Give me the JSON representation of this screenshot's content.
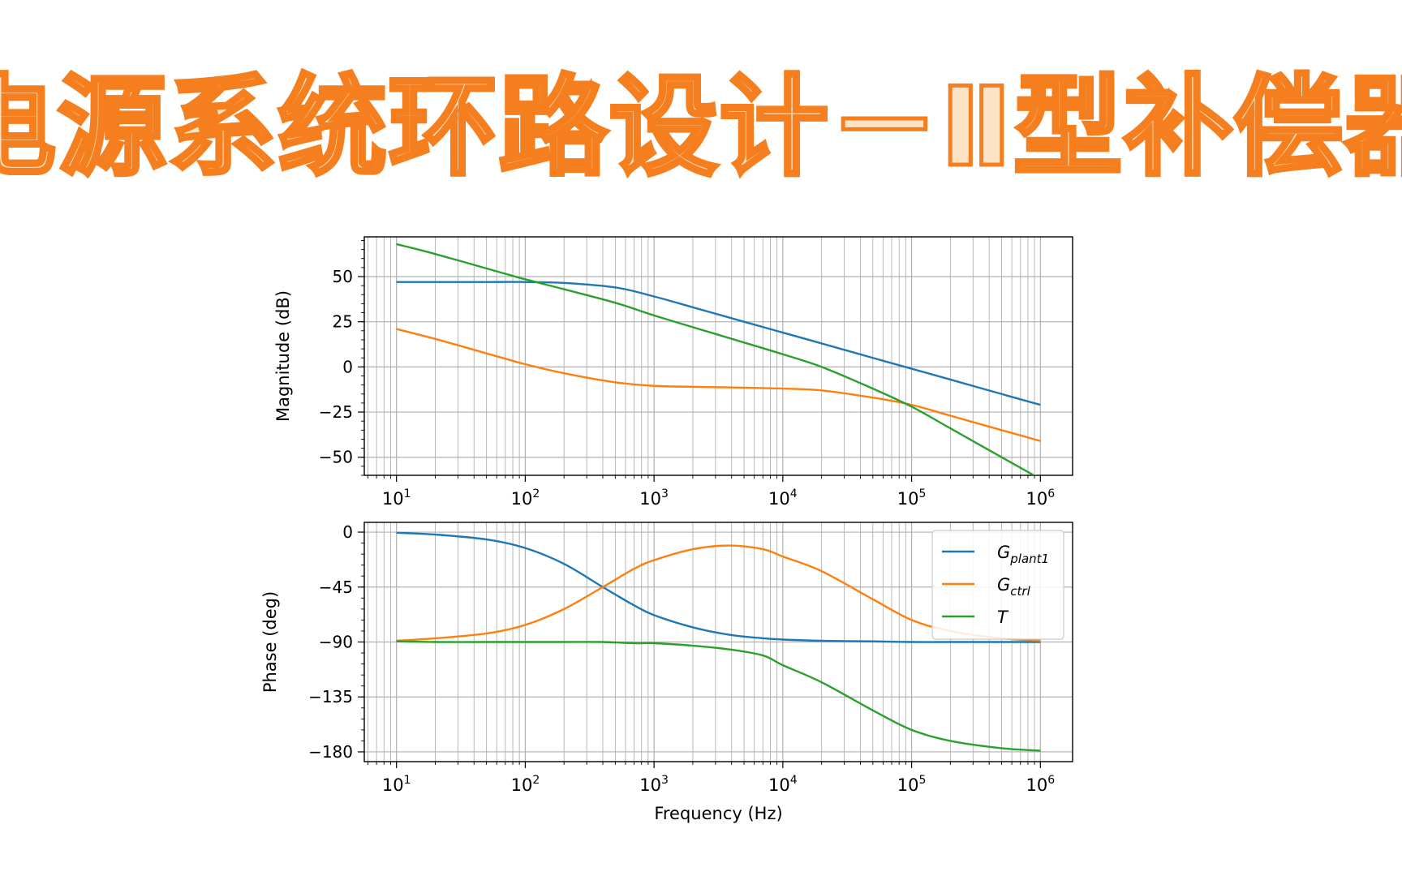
{
  "banner": {
    "title": "电源系统环路设计－Ⅱ型补偿器"
  },
  "colors": {
    "plant": "#1f77b4",
    "ctrl": "#ff7f0e",
    "loop": "#2ca02c",
    "banner_fill": "#fde3c6",
    "banner_stroke": "#f57f1f"
  },
  "chart_data": [
    {
      "type": "line",
      "xscale": "log",
      "xlim": [
        10,
        1000000
      ],
      "ylim": [
        -60,
        72
      ],
      "ylabel": "Magnitude (dB)",
      "xlabel": "",
      "grid": true,
      "yticks": [
        50,
        25,
        0,
        -25,
        -50
      ],
      "ytick_labels": [
        "50",
        "25",
        "0",
        "−25",
        "−50"
      ],
      "xticks": [
        10,
        100,
        1000,
        10000,
        100000,
        1000000
      ],
      "xtick_labels": [
        {
          "base": "10",
          "exp": "1"
        },
        {
          "base": "10",
          "exp": "2"
        },
        {
          "base": "10",
          "exp": "3"
        },
        {
          "base": "10",
          "exp": "4"
        },
        {
          "base": "10",
          "exp": "5"
        },
        {
          "base": "10",
          "exp": "6"
        }
      ],
      "x": [
        10,
        20,
        50,
        100,
        200,
        500,
        1000,
        2000,
        5000,
        10000,
        20000,
        50000,
        100000,
        200000,
        500000,
        1000000
      ],
      "series": [
        {
          "key": "plant",
          "values": [
            47,
            47,
            47,
            47,
            46.5,
            44,
            39,
            33,
            25,
            19,
            13,
            5,
            -1,
            -7,
            -15,
            -21
          ]
        },
        {
          "key": "ctrl",
          "values": [
            21,
            15.5,
            7.5,
            1.5,
            -3.5,
            -8.5,
            -10.5,
            -11,
            -11.5,
            -12,
            -13,
            -17,
            -21,
            -27,
            -35,
            -41
          ]
        },
        {
          "key": "loop",
          "values": [
            68,
            62.5,
            54.5,
            48.5,
            43,
            35.5,
            28.5,
            22,
            13.5,
            7,
            0,
            -12,
            -22,
            -34,
            -50,
            -62
          ]
        }
      ]
    },
    {
      "type": "line",
      "xscale": "log",
      "xlim": [
        10,
        1000000
      ],
      "ylim": [
        -188,
        8
      ],
      "ylabel": "Phase (deg)",
      "xlabel": "Frequency (Hz)",
      "grid": true,
      "legend_position": "upper right",
      "yticks": [
        0,
        -45,
        -90,
        -135,
        -180
      ],
      "ytick_labels": [
        "0",
        "−45",
        "−90",
        "−135",
        "−180"
      ],
      "xticks": [
        10,
        100,
        1000,
        10000,
        100000,
        1000000
      ],
      "xtick_labels": [
        {
          "base": "10",
          "exp": "1"
        },
        {
          "base": "10",
          "exp": "2"
        },
        {
          "base": "10",
          "exp": "3"
        },
        {
          "base": "10",
          "exp": "4"
        },
        {
          "base": "10",
          "exp": "5"
        },
        {
          "base": "10",
          "exp": "6"
        }
      ],
      "x": [
        10,
        20,
        50,
        100,
        200,
        400,
        700,
        1000,
        2000,
        3800,
        7000,
        10000,
        20000,
        50000,
        100000,
        200000,
        500000,
        1000000
      ],
      "series": [
        {
          "key": "plant",
          "legend": {
            "main": "G",
            "sub": "plant1"
          },
          "values": [
            -0.5,
            -2,
            -6,
            -13,
            -26,
            -45,
            -60,
            -68,
            -78,
            -84,
            -87,
            -88,
            -89,
            -89.5,
            -90,
            -90,
            -90,
            -90
          ]
        },
        {
          "key": "ctrl",
          "legend": {
            "main": "G",
            "sub": "ctrl"
          },
          "values": [
            -89,
            -87,
            -83,
            -76,
            -63,
            -45,
            -30,
            -23,
            -14,
            -11,
            -14,
            -20,
            -32,
            -55,
            -72,
            -81,
            -87,
            -89
          ]
        },
        {
          "key": "loop",
          "legend": {
            "main": "T",
            "sub": ""
          },
          "values": [
            -89.5,
            -90,
            -90,
            -90,
            -90,
            -90,
            -91,
            -91,
            -93,
            -96,
            -101,
            -109,
            -123,
            -146,
            -162,
            -171,
            -177,
            -179
          ]
        }
      ]
    }
  ]
}
